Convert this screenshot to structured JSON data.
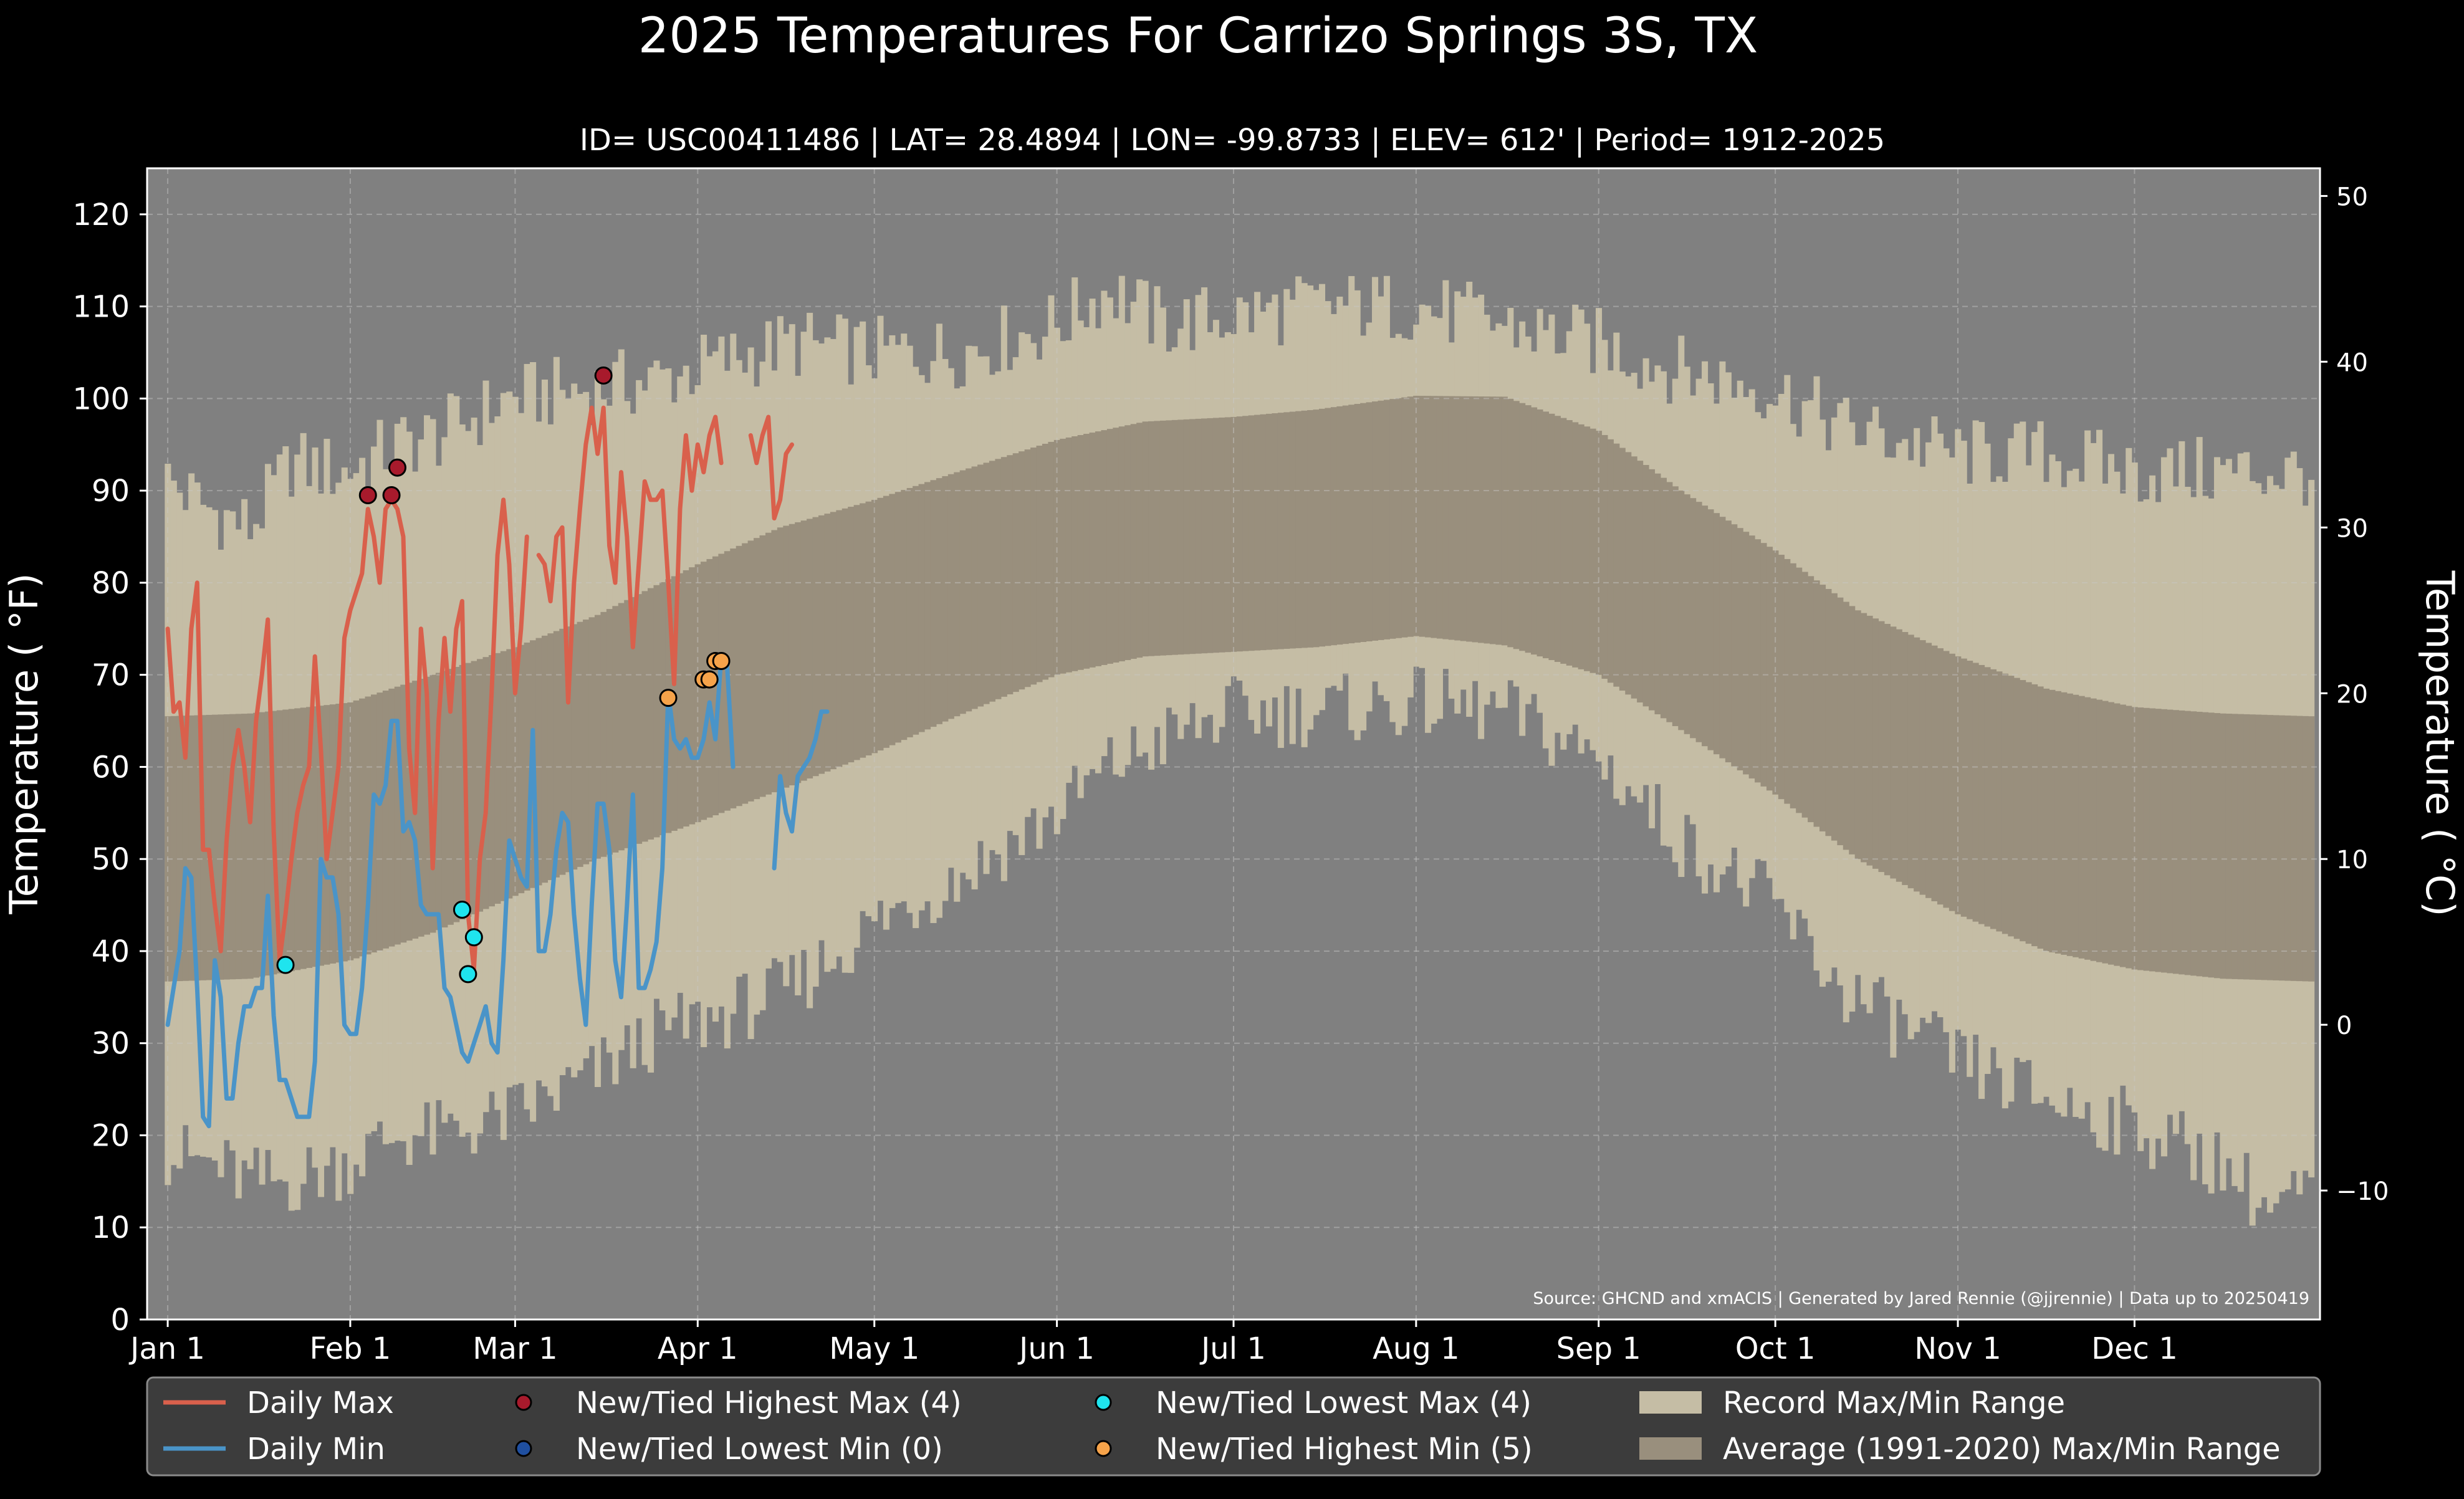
{
  "chart_data": {
    "type": "line",
    "title": "2025 Temperatures For Carrizo Springs 3S, TX",
    "subtitle": "ID= USC00411486 | LAT= 28.4894 | LON= -99.8733 | ELEV= 612' | Period= 1912-2025",
    "ylabel": "Temperature ($^\\circ$F)",
    "ylabel_display": "Temperature ( °F)",
    "y2label_display": "Temperature ( °C)",
    "source": "Source: GHCND and xmACIS | Generated by Jared Rennie (@jjrennie) | Data up to 20250419",
    "ylim": [
      0,
      125
    ],
    "y2lim": [
      -17.78,
      51.67
    ],
    "yticks": [
      0,
      10,
      20,
      30,
      40,
      50,
      60,
      70,
      80,
      90,
      100,
      110,
      120
    ],
    "y2ticks": [
      -10,
      0,
      10,
      20,
      30,
      40,
      50
    ],
    "xlim_day": [
      -2.5,
      366.5
    ],
    "xticks": [
      {
        "label": "Jan 1",
        "day": 1
      },
      {
        "label": "Feb 1",
        "day": 32
      },
      {
        "label": "Mar 1",
        "day": 60
      },
      {
        "label": "Apr 1",
        "day": 91
      },
      {
        "label": "May 1",
        "day": 121
      },
      {
        "label": "Jun 1",
        "day": 152
      },
      {
        "label": "Jul 1",
        "day": 182
      },
      {
        "label": "Aug 1",
        "day": 213
      },
      {
        "label": "Sep 1",
        "day": 244
      },
      {
        "label": "Oct 1",
        "day": 274
      },
      {
        "label": "Nov 1",
        "day": 305
      },
      {
        "label": "Dec 1",
        "day": 335
      }
    ],
    "grid": true,
    "legend_position": "bottom",
    "legend": [
      {
        "label": "Daily Max",
        "kind": "line",
        "color": "#d9604c"
      },
      {
        "label": "Daily Min",
        "kind": "line",
        "color": "#4a94c8"
      },
      {
        "label": "New/Tied Highest Max (4)",
        "kind": "marker",
        "color": "#a81a2c"
      },
      {
        "label": "New/Tied Lowest Min (0)",
        "kind": "marker",
        "color": "#1f4fa0"
      },
      {
        "label": "New/Tied Lowest Max (4)",
        "kind": "marker",
        "color": "#1fe4ee"
      },
      {
        "label": "New/Tied Highest Min (5)",
        "kind": "marker",
        "color": "#f6a34a"
      },
      {
        "label": "Record Max/Min Range",
        "kind": "patch",
        "color": "#c5bda5"
      },
      {
        "label": "Average (1991-2020) Max/Min Range",
        "kind": "patch",
        "color": "#998f7d"
      }
    ],
    "colors": {
      "background": "#000000",
      "plot_background": "#808080",
      "record_range": "#c5bda5",
      "normal_range": "#998f7d",
      "grid": "#c8c8c8",
      "daily_max": "#d9604c",
      "daily_min": "#4a94c8",
      "text": "#ffffff",
      "legend_background": "#3c3c3c"
    },
    "record_max_anchors": [
      [
        1,
        91
      ],
      [
        8,
        88
      ],
      [
        15,
        86
      ],
      [
        22,
        93
      ],
      [
        31,
        92
      ],
      [
        40,
        95
      ],
      [
        47,
        96
      ],
      [
        59,
        100
      ],
      [
        72,
        101
      ],
      [
        84,
        102
      ],
      [
        95,
        104
      ],
      [
        107,
        106
      ],
      [
        121,
        105
      ],
      [
        135,
        105
      ],
      [
        152,
        108
      ],
      [
        161,
        112
      ],
      [
        170,
        108
      ],
      [
        182,
        109
      ],
      [
        196,
        110
      ],
      [
        213,
        110
      ],
      [
        228,
        108
      ],
      [
        244,
        106
      ],
      [
        258,
        103
      ],
      [
        274,
        101
      ],
      [
        285,
        97
      ],
      [
        305,
        94
      ],
      [
        320,
        94
      ],
      [
        335,
        92
      ],
      [
        350,
        92
      ],
      [
        365,
        92
      ]
    ],
    "record_min_anchors": [
      [
        1,
        18
      ],
      [
        8,
        17
      ],
      [
        15,
        15
      ],
      [
        22,
        15
      ],
      [
        31,
        17
      ],
      [
        40,
        20
      ],
      [
        47,
        20
      ],
      [
        59,
        22
      ],
      [
        72,
        26
      ],
      [
        84,
        31
      ],
      [
        95,
        33
      ],
      [
        107,
        36
      ],
      [
        121,
        43
      ],
      [
        135,
        48
      ],
      [
        152,
        55
      ],
      [
        161,
        60
      ],
      [
        170,
        63
      ],
      [
        182,
        66
      ],
      [
        196,
        66
      ],
      [
        213,
        67
      ],
      [
        228,
        66
      ],
      [
        244,
        61
      ],
      [
        258,
        52
      ],
      [
        274,
        45
      ],
      [
        285,
        36
      ],
      [
        305,
        28
      ],
      [
        320,
        24
      ],
      [
        335,
        21
      ],
      [
        350,
        17
      ],
      [
        358,
        12
      ],
      [
        365,
        14
      ]
    ],
    "normal_max_anchors": [
      [
        1,
        65.5
      ],
      [
        15,
        65.8
      ],
      [
        32,
        67
      ],
      [
        46,
        70
      ],
      [
        60,
        73
      ],
      [
        74,
        76.5
      ],
      [
        91,
        82
      ],
      [
        105,
        86
      ],
      [
        121,
        89
      ],
      [
        135,
        92
      ],
      [
        152,
        95.5
      ],
      [
        167,
        97.5
      ],
      [
        182,
        98
      ],
      [
        196,
        98.8
      ],
      [
        213,
        100.3
      ],
      [
        228,
        100.2
      ],
      [
        244,
        96.5
      ],
      [
        258,
        90
      ],
      [
        274,
        83.5
      ],
      [
        288,
        77
      ],
      [
        305,
        72
      ],
      [
        320,
        68.5
      ],
      [
        335,
        66.5
      ],
      [
        350,
        65.8
      ],
      [
        365,
        65.5
      ]
    ],
    "normal_min_anchors": [
      [
        1,
        36.7
      ],
      [
        15,
        37
      ],
      [
        32,
        39
      ],
      [
        46,
        42
      ],
      [
        60,
        46
      ],
      [
        74,
        50
      ],
      [
        91,
        54
      ],
      [
        105,
        57.5
      ],
      [
        121,
        61.5
      ],
      [
        135,
        65.5
      ],
      [
        152,
        70
      ],
      [
        167,
        72
      ],
      [
        182,
        72.5
      ],
      [
        196,
        73
      ],
      [
        213,
        74.2
      ],
      [
        228,
        73.2
      ],
      [
        244,
        70
      ],
      [
        258,
        64
      ],
      [
        274,
        57
      ],
      [
        288,
        50
      ],
      [
        305,
        44
      ],
      [
        320,
        40
      ],
      [
        335,
        38
      ],
      [
        350,
        37
      ],
      [
        365,
        36.7
      ]
    ],
    "series": [
      {
        "name": "Daily Max",
        "start_day": 1,
        "values": [
          75,
          66,
          67,
          61,
          75,
          80,
          51,
          51,
          45,
          40,
          52,
          60,
          64,
          60,
          54,
          65,
          70,
          76,
          53,
          39,
          44,
          50,
          55,
          58,
          60,
          72,
          62,
          50,
          55,
          60,
          74,
          77,
          79,
          81,
          88,
          85,
          80,
          88,
          89,
          88,
          85,
          62,
          55,
          75,
          68,
          49,
          65,
          74,
          66,
          75,
          78,
          44,
          38,
          50,
          55,
          68,
          83,
          89,
          82,
          68,
          75,
          85,
          null,
          83,
          82,
          78,
          85,
          86,
          67,
          80,
          88,
          95,
          99,
          94,
          99,
          84,
          80,
          92,
          85,
          73,
          82,
          91,
          89,
          89,
          90,
          80,
          69,
          88,
          96,
          90,
          95,
          92,
          96,
          98,
          93,
          null,
          null,
          null,
          null,
          96,
          93,
          96,
          98,
          87,
          89,
          94,
          95
        ]
      },
      {
        "name": "Daily Min",
        "start_day": 1,
        "values": [
          32,
          36,
          40,
          49,
          48,
          36,
          22,
          21,
          39,
          35,
          24,
          24,
          30,
          34,
          34,
          36,
          36,
          46,
          33,
          26,
          26,
          24,
          22,
          22,
          22,
          28,
          50,
          48,
          48,
          44,
          32,
          31,
          31,
          36,
          45,
          57,
          56,
          58,
          65,
          65,
          53,
          54,
          52,
          45,
          44,
          44,
          44,
          36,
          35,
          32,
          29,
          28,
          30,
          32,
          34,
          30,
          29,
          39,
          52,
          50,
          48,
          47,
          64,
          40,
          40,
          44,
          51,
          55,
          54,
          44,
          37,
          32,
          45,
          56,
          56,
          51,
          39,
          35,
          45,
          57,
          36,
          36,
          38,
          41,
          49,
          68,
          63,
          62,
          63,
          61,
          61,
          63,
          67,
          63,
          72,
          71,
          60,
          null,
          null,
          null,
          null,
          null,
          null,
          49,
          59,
          55,
          53,
          59,
          60,
          61,
          63,
          66,
          66
        ]
      }
    ],
    "record_markers": [
      {
        "series": "New/Tied Highest Max (4)",
        "points": [
          [
            35,
            89.5
          ],
          [
            39,
            89.5
          ],
          [
            40,
            92.5
          ],
          [
            75,
            102.5
          ]
        ]
      },
      {
        "series": "New/Tied Lowest Max (4)",
        "points": [
          [
            21,
            38.5
          ],
          [
            51,
            44.5
          ],
          [
            52,
            37.5
          ],
          [
            53,
            41.5
          ]
        ]
      },
      {
        "series": "New/Tied Highest Min (5)",
        "points": [
          [
            86,
            67.5
          ],
          [
            92,
            69.5
          ],
          [
            93,
            69.5
          ],
          [
            94,
            71.5
          ],
          [
            95,
            71.5
          ]
        ]
      }
    ]
  }
}
